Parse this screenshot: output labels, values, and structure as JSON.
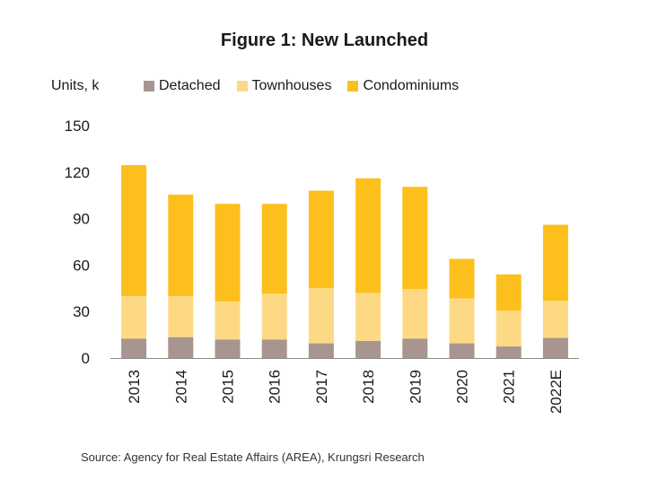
{
  "chart_data": {
    "type": "bar",
    "stacked": true,
    "title": "Figure 1: New Launched",
    "ylabel": "Units, k",
    "xlabel": "",
    "ylim": [
      0,
      150
    ],
    "yticks": [
      0,
      30,
      60,
      90,
      120,
      150
    ],
    "grid": false,
    "legend_position": "top",
    "categories": [
      "2013",
      "2014",
      "2015",
      "2016",
      "2017",
      "2018",
      "2019",
      "2020",
      "2021",
      "2022E"
    ],
    "series": [
      {
        "name": "Detached",
        "color": "#a8958f",
        "values": [
          12.5,
          13.5,
          12,
          12,
          9.5,
          11,
          12.5,
          9.5,
          7.5,
          13
        ]
      },
      {
        "name": "Townhouses",
        "color": "#fdd985",
        "values": [
          27.5,
          26.5,
          24.5,
          29.5,
          35.5,
          31,
          32,
          29,
          23,
          24
        ]
      },
      {
        "name": "Condominiums",
        "color": "#fcbf1c",
        "values": [
          84.5,
          65.5,
          63,
          58,
          63,
          74,
          66,
          25.5,
          23.5,
          49
        ]
      }
    ],
    "source": "Source: Agency for Real Estate Affairs (AREA), Krungsri Research"
  }
}
